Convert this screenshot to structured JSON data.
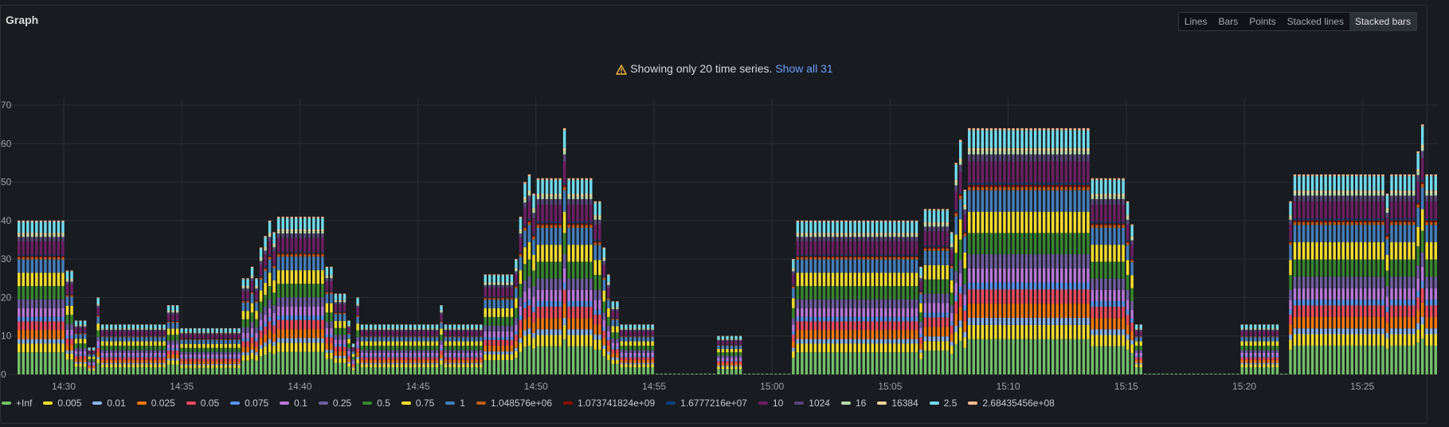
{
  "panel": {
    "title": "Graph"
  },
  "modes": [
    {
      "label": "Lines",
      "active": false
    },
    {
      "label": "Bars",
      "active": false
    },
    {
      "label": "Points",
      "active": false
    },
    {
      "label": "Stacked lines",
      "active": false
    },
    {
      "label": "Stacked bars",
      "active": true
    }
  ],
  "warning": {
    "text": "Showing only 20 time series.",
    "link": "Show all 31",
    "icon": "warning-triangle-icon",
    "icon_color": "#f5b73d"
  },
  "chart_data": {
    "type": "bar",
    "stacked": true,
    "grid": true,
    "legend_position": "bottom",
    "ylim": [
      0,
      70
    ],
    "yticks": [
      "0",
      "10",
      "20",
      "30",
      "40",
      "50",
      "60",
      "70"
    ],
    "xticks": [
      "14:30",
      "14:35",
      "14:40",
      "14:45",
      "14:50",
      "14:55",
      "15:00",
      "15:05",
      "15:10",
      "15:15",
      "15:20",
      "15:25"
    ],
    "series": [
      {
        "name": "+Inf",
        "color": "#73bf69"
      },
      {
        "name": "0.005",
        "color": "#fade2a"
      },
      {
        "name": "0.01",
        "color": "#8ab8ff"
      },
      {
        "name": "0.025",
        "color": "#ff780a"
      },
      {
        "name": "0.05",
        "color": "#f2495c"
      },
      {
        "name": "0.075",
        "color": "#5794f2"
      },
      {
        "name": "0.1",
        "color": "#b877d9"
      },
      {
        "name": "0.25",
        "color": "#705da0"
      },
      {
        "name": "0.5",
        "color": "#37872d"
      },
      {
        "name": "0.75",
        "color": "#fade2a"
      },
      {
        "name": "1",
        "color": "#447ebc"
      },
      {
        "name": "1.048576e+06",
        "color": "#c15c17"
      },
      {
        "name": "1.073741824e+09",
        "color": "#890f02"
      },
      {
        "name": "1.6777216e+07",
        "color": "#0a437c"
      },
      {
        "name": "10",
        "color": "#6d1f62"
      },
      {
        "name": "1024",
        "color": "#584477"
      },
      {
        "name": "16",
        "color": "#b7dbab"
      },
      {
        "name": "16384",
        "color": "#f4d598"
      },
      {
        "name": "2.5",
        "color": "#70dbed"
      },
      {
        "name": "2.68435456e+08",
        "color": "#f9ba8f"
      }
    ],
    "totals": [
      40,
      40,
      40,
      40,
      40,
      40,
      40,
      40,
      40,
      40,
      40,
      27,
      27,
      14,
      14,
      14,
      7,
      7,
      20,
      13,
      13,
      13,
      13,
      13,
      13,
      13,
      13,
      13,
      13,
      13,
      13,
      13,
      13,
      13,
      18,
      18,
      18,
      12,
      12,
      12,
      12,
      12,
      12,
      12,
      12,
      12,
      12,
      12,
      12,
      12,
      12,
      25,
      25,
      28,
      25,
      33,
      36,
      40,
      37,
      41,
      41,
      41,
      41,
      41,
      41,
      41,
      41,
      41,
      41,
      41,
      28,
      28,
      21,
      21,
      21,
      14,
      8,
      20,
      13,
      13,
      13,
      13,
      13,
      13,
      13,
      13,
      13,
      13,
      13,
      13,
      13,
      13,
      13,
      13,
      13,
      13,
      18,
      13,
      13,
      13,
      13,
      13,
      13,
      13,
      13,
      13,
      26,
      26,
      26,
      26,
      26,
      26,
      26,
      30,
      41,
      50,
      52,
      47,
      51,
      51,
      51,
      51,
      51,
      51,
      64,
      51,
      51,
      51,
      51,
      51,
      51,
      45,
      45,
      33,
      26,
      19,
      19,
      13,
      13,
      13,
      13,
      13,
      13,
      13,
      13,
      0,
      0,
      0,
      0,
      0,
      0,
      0,
      0,
      0,
      0,
      0,
      0,
      0,
      0,
      10,
      10,
      10,
      10,
      10,
      10,
      0,
      0,
      0,
      0,
      0,
      0,
      0,
      0,
      0,
      0,
      0,
      30,
      40,
      40,
      40,
      40,
      40,
      40,
      40,
      40,
      40,
      40,
      40,
      40,
      40,
      40,
      40,
      40,
      40,
      40,
      40,
      40,
      40,
      40,
      40,
      40,
      40,
      40,
      40,
      40,
      28,
      43,
      43,
      43,
      43,
      43,
      43,
      37,
      55,
      61,
      48,
      64,
      64,
      64,
      64,
      64,
      64,
      64,
      64,
      64,
      64,
      64,
      64,
      64,
      64,
      64,
      64,
      64,
      64,
      64,
      64,
      64,
      64,
      64,
      64,
      64,
      64,
      64,
      64,
      51,
      51,
      51,
      51,
      51,
      51,
      51,
      51,
      45,
      39,
      13,
      13,
      0,
      0,
      0,
      0,
      0,
      0,
      0,
      0,
      0,
      0,
      0,
      0,
      0,
      0,
      0,
      0,
      0,
      0,
      0,
      0,
      0,
      0,
      13,
      13,
      13,
      13,
      13,
      13,
      13,
      13,
      13,
      0,
      0,
      45,
      52,
      52,
      52,
      52,
      52,
      52,
      52,
      52,
      52,
      52,
      52,
      52,
      52,
      52,
      52,
      52,
      52,
      52,
      52,
      52,
      52,
      47,
      52,
      52,
      52,
      52,
      52,
      52,
      58,
      65,
      52,
      52,
      52
    ]
  }
}
